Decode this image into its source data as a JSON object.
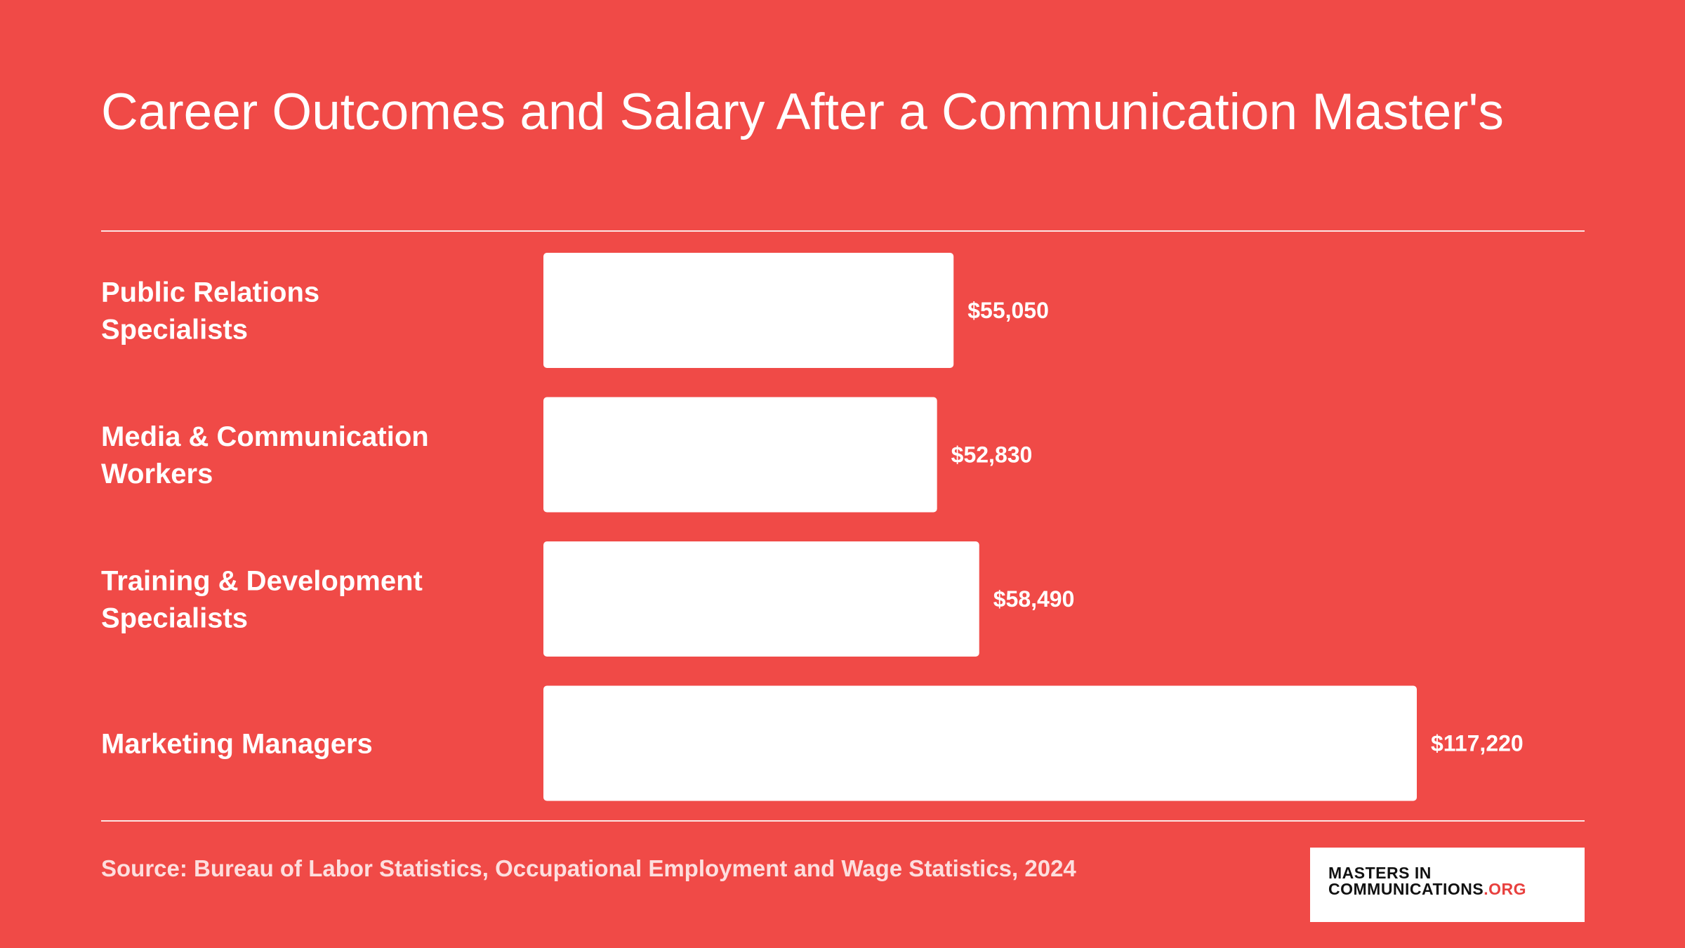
{
  "title": "Career Outcomes and Salary After a Communication Master's",
  "source": "Source: Bureau of Labor Statistics, Occupational Employment and Wage Statistics, 2024",
  "logo": {
    "line1": "MASTERS IN",
    "line2": "COMMUNICATIONS",
    "suffix": ".ORG"
  },
  "colors": {
    "background": "#f04a47",
    "bar": "#ffffff",
    "text": "#ffffff",
    "logo_accent": "#e8403e"
  },
  "chart_data": {
    "type": "bar",
    "orientation": "horizontal",
    "categories": [
      [
        "Public Relations",
        "Specialists"
      ],
      [
        "Media & Communication",
        "Workers"
      ],
      [
        "Training & Development",
        "Specialists"
      ],
      [
        "Marketing Managers"
      ]
    ],
    "values": [
      55050,
      52830,
      58490,
      117220
    ],
    "value_labels": [
      "$55,050",
      "$52,830",
      "$58,490",
      "$117,220"
    ],
    "grid": false,
    "legend": "none"
  }
}
